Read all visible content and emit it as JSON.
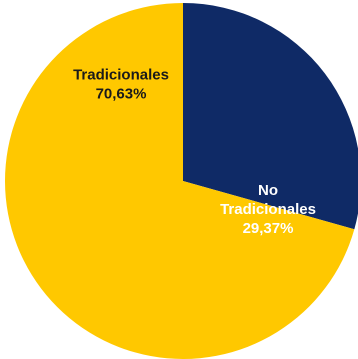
{
  "chart_data": {
    "type": "pie",
    "start_angle_deg": 90,
    "direction": "clockwise",
    "slices": [
      {
        "label_lines": [
          "No",
          "Tradicionales"
        ],
        "value_label": "29,37%",
        "value": 29.37,
        "color": "#0f2a66",
        "label_color": "#ffffff"
      },
      {
        "label_lines": [
          "Tradicionales"
        ],
        "value_label": "70,63%",
        "value": 70.63,
        "color": "#ffc800",
        "label_color": "#1a1a1a"
      }
    ]
  }
}
